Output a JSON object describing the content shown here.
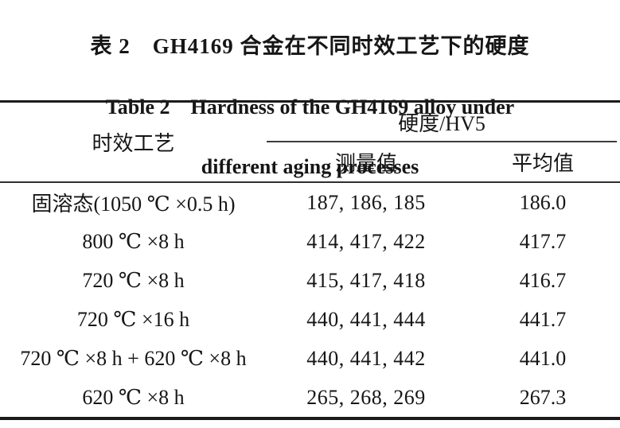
{
  "title": {
    "zh": "表 2　GH4169 合金在不同时效工艺下的硬度",
    "en_line1": "Table 2　Hardness of the GH4169 alloy under",
    "en_line2": "different aging processes"
  },
  "table": {
    "col_process": "时效工艺",
    "col_hardness_group": "硬度/HV5",
    "col_measured": "测量值",
    "col_average": "平均值",
    "rows": [
      {
        "process": "固溶态(1050 ℃ ×0.5 h)",
        "measured": "187, 186, 185",
        "average": "186.0"
      },
      {
        "process": "800 ℃ ×8 h",
        "measured": "414, 417, 422",
        "average": "417.7"
      },
      {
        "process": "720 ℃ ×8 h",
        "measured": "415, 417, 418",
        "average": "416.7"
      },
      {
        "process": "720 ℃ ×16 h",
        "measured": "440, 441, 444",
        "average": "441.7"
      },
      {
        "process": "720 ℃ ×8 h + 620 ℃ ×8 h",
        "measured": "440, 441, 442",
        "average": "441.0"
      },
      {
        "process": "620 ℃ ×8 h",
        "measured": "265, 268, 269",
        "average": "267.3"
      }
    ]
  },
  "colors": {
    "text": "#161616",
    "rule": "#1b1b1b",
    "background": "#ffffff"
  }
}
